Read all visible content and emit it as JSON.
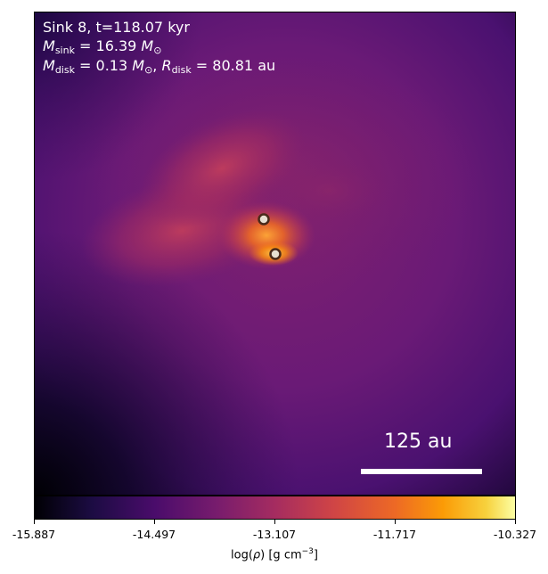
{
  "annotations": {
    "line1": "Sink 8, t=118.07 kyr",
    "m_sink_symbol": "M",
    "m_sink_sub": "sink",
    "m_sink_value": " = 16.39 ",
    "m_sink_unit": "M",
    "m_sink_unit_sub": "⊙",
    "m_disk_symbol": "M",
    "m_disk_sub": "disk",
    "m_disk_value": " = 0.13 ",
    "m_disk_unit": "M",
    "m_disk_unit_sub": "⊙",
    "sep": ", ",
    "r_disk_symbol": "R",
    "r_disk_sub": "disk",
    "r_disk_value": " = 80.81 au"
  },
  "scale_bar": {
    "label": "125 au"
  },
  "colorbar": {
    "colormap": "inferno",
    "min": -15.887,
    "max": -10.327,
    "ticks": [
      "-15.887",
      "-14.497",
      "-13.107",
      "-11.717",
      "-10.327"
    ],
    "label_prefix": "log(",
    "label_rho": "ρ",
    "label_mid": ") [g cm",
    "label_exp": "−3",
    "label_suffix": "]"
  },
  "colors": {
    "background_field": "#6b1a77",
    "core_glow": "#f07a28",
    "sink_fill": "#e8e0d2",
    "sink_ring": "#4a2a1a"
  }
}
